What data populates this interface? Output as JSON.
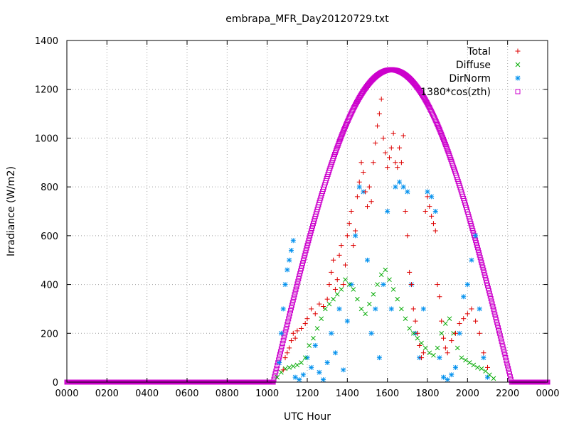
{
  "chart_data": {
    "type": "scatter",
    "title": "embrapa_MFR_Day20120729.txt",
    "xlabel": "UTC Hour",
    "ylabel": "Irradiance (W/m2)",
    "xlim": [
      0,
      24
    ],
    "ylim": [
      0,
      1400
    ],
    "grid": true,
    "legend_position": "top-right",
    "x_ticks": [
      {
        "value": 0,
        "label": "0000"
      },
      {
        "value": 2,
        "label": "0200"
      },
      {
        "value": 4,
        "label": "0400"
      },
      {
        "value": 6,
        "label": "0600"
      },
      {
        "value": 8,
        "label": "0800"
      },
      {
        "value": 10,
        "label": "1000"
      },
      {
        "value": 12,
        "label": "1200"
      },
      {
        "value": 14,
        "label": "1400"
      },
      {
        "value": 16,
        "label": "1600"
      },
      {
        "value": 18,
        "label": "1800"
      },
      {
        "value": 20,
        "label": "2000"
      },
      {
        "value": 22,
        "label": "2200"
      },
      {
        "value": 24,
        "label": "0000"
      }
    ],
    "y_ticks": [
      {
        "value": 0,
        "label": "0"
      },
      {
        "value": 200,
        "label": "200"
      },
      {
        "value": 400,
        "label": "400"
      },
      {
        "value": 600,
        "label": "600"
      },
      {
        "value": 800,
        "label": "800"
      },
      {
        "value": 1000,
        "label": "1000"
      },
      {
        "value": 1200,
        "label": "1200"
      },
      {
        "value": 1400,
        "label": "1400"
      }
    ],
    "series": [
      {
        "name": "Total",
        "marker": "plus",
        "color": "#dd0000",
        "points": [
          [
            10.8,
            50
          ],
          [
            10.9,
            100
          ],
          [
            11.0,
            120
          ],
          [
            11.1,
            140
          ],
          [
            11.2,
            170
          ],
          [
            11.3,
            200
          ],
          [
            11.4,
            180
          ],
          [
            11.5,
            210
          ],
          [
            11.7,
            220
          ],
          [
            11.9,
            240
          ],
          [
            12.0,
            260
          ],
          [
            12.2,
            300
          ],
          [
            12.4,
            280
          ],
          [
            12.6,
            320
          ],
          [
            12.8,
            310
          ],
          [
            13.0,
            340
          ],
          [
            13.1,
            400
          ],
          [
            13.2,
            450
          ],
          [
            13.3,
            500
          ],
          [
            13.4,
            380
          ],
          [
            13.5,
            420
          ],
          [
            13.6,
            520
          ],
          [
            13.7,
            560
          ],
          [
            13.8,
            400
          ],
          [
            13.9,
            480
          ],
          [
            14.0,
            600
          ],
          [
            14.1,
            650
          ],
          [
            14.2,
            700
          ],
          [
            14.3,
            560
          ],
          [
            14.4,
            620
          ],
          [
            14.5,
            760
          ],
          [
            14.6,
            820
          ],
          [
            14.7,
            900
          ],
          [
            14.8,
            860
          ],
          [
            14.9,
            780
          ],
          [
            15.0,
            720
          ],
          [
            15.1,
            800
          ],
          [
            15.2,
            740
          ],
          [
            15.3,
            900
          ],
          [
            15.4,
            980
          ],
          [
            15.5,
            1050
          ],
          [
            15.6,
            1100
          ],
          [
            15.7,
            1160
          ],
          [
            15.8,
            1000
          ],
          [
            15.9,
            940
          ],
          [
            16.0,
            880
          ],
          [
            16.1,
            920
          ],
          [
            16.2,
            960
          ],
          [
            16.3,
            1020
          ],
          [
            16.4,
            900
          ],
          [
            16.5,
            880
          ],
          [
            16.6,
            960
          ],
          [
            16.7,
            900
          ],
          [
            16.8,
            1010
          ],
          [
            16.9,
            700
          ],
          [
            17.0,
            600
          ],
          [
            17.1,
            450
          ],
          [
            17.2,
            400
          ],
          [
            17.3,
            300
          ],
          [
            17.4,
            250
          ],
          [
            17.5,
            200
          ],
          [
            17.6,
            150
          ],
          [
            17.7,
            100
          ],
          [
            17.8,
            120
          ],
          [
            17.9,
            700
          ],
          [
            18.0,
            760
          ],
          [
            18.1,
            720
          ],
          [
            18.2,
            680
          ],
          [
            18.3,
            650
          ],
          [
            18.4,
            620
          ],
          [
            18.5,
            400
          ],
          [
            18.6,
            350
          ],
          [
            18.7,
            250
          ],
          [
            18.8,
            180
          ],
          [
            18.9,
            140
          ],
          [
            19.0,
            120
          ],
          [
            19.2,
            170
          ],
          [
            19.4,
            200
          ],
          [
            19.6,
            240
          ],
          [
            19.8,
            260
          ],
          [
            20.0,
            280
          ],
          [
            20.2,
            300
          ],
          [
            20.4,
            250
          ],
          [
            20.6,
            200
          ],
          [
            20.8,
            120
          ],
          [
            21.0,
            60
          ]
        ]
      },
      {
        "name": "Diffuse",
        "marker": "cross",
        "color": "#00aa00",
        "points": [
          [
            10.5,
            20
          ],
          [
            10.7,
            40
          ],
          [
            10.9,
            55
          ],
          [
            11.1,
            60
          ],
          [
            11.3,
            65
          ],
          [
            11.5,
            70
          ],
          [
            11.7,
            80
          ],
          [
            11.9,
            100
          ],
          [
            12.1,
            150
          ],
          [
            12.3,
            180
          ],
          [
            12.5,
            220
          ],
          [
            12.7,
            260
          ],
          [
            12.9,
            300
          ],
          [
            13.1,
            320
          ],
          [
            13.3,
            340
          ],
          [
            13.5,
            360
          ],
          [
            13.7,
            380
          ],
          [
            13.9,
            420
          ],
          [
            14.1,
            400
          ],
          [
            14.3,
            380
          ],
          [
            14.5,
            340
          ],
          [
            14.7,
            300
          ],
          [
            14.9,
            280
          ],
          [
            15.1,
            320
          ],
          [
            15.3,
            360
          ],
          [
            15.5,
            400
          ],
          [
            15.7,
            440
          ],
          [
            15.9,
            460
          ],
          [
            16.1,
            420
          ],
          [
            16.3,
            380
          ],
          [
            16.5,
            340
          ],
          [
            16.7,
            300
          ],
          [
            16.9,
            260
          ],
          [
            17.1,
            220
          ],
          [
            17.3,
            200
          ],
          [
            17.5,
            180
          ],
          [
            17.7,
            160
          ],
          [
            17.9,
            140
          ],
          [
            18.1,
            120
          ],
          [
            18.3,
            110
          ],
          [
            18.5,
            140
          ],
          [
            18.7,
            200
          ],
          [
            18.9,
            240
          ],
          [
            19.1,
            260
          ],
          [
            19.3,
            200
          ],
          [
            19.5,
            140
          ],
          [
            19.7,
            100
          ],
          [
            19.9,
            90
          ],
          [
            20.1,
            80
          ],
          [
            20.3,
            70
          ],
          [
            20.5,
            60
          ],
          [
            20.7,
            55
          ],
          [
            20.9,
            45
          ],
          [
            21.1,
            30
          ],
          [
            21.3,
            15
          ]
        ]
      },
      {
        "name": "DirNorm",
        "marker": "star",
        "color": "#0090ee",
        "points": [
          [
            10.6,
            80
          ],
          [
            10.7,
            200
          ],
          [
            10.8,
            300
          ],
          [
            10.9,
            400
          ],
          [
            11.0,
            460
          ],
          [
            11.1,
            500
          ],
          [
            11.2,
            540
          ],
          [
            11.3,
            580
          ],
          [
            11.4,
            20
          ],
          [
            11.6,
            10
          ],
          [
            11.8,
            30
          ],
          [
            12.0,
            100
          ],
          [
            12.2,
            60
          ],
          [
            12.4,
            150
          ],
          [
            12.6,
            40
          ],
          [
            12.8,
            10
          ],
          [
            13.0,
            80
          ],
          [
            13.2,
            200
          ],
          [
            13.4,
            120
          ],
          [
            13.6,
            300
          ],
          [
            13.8,
            50
          ],
          [
            14.0,
            250
          ],
          [
            14.2,
            400
          ],
          [
            14.4,
            600
          ],
          [
            14.6,
            800
          ],
          [
            14.8,
            780
          ],
          [
            15.0,
            500
          ],
          [
            15.2,
            200
          ],
          [
            15.4,
            300
          ],
          [
            15.6,
            100
          ],
          [
            15.8,
            400
          ],
          [
            16.0,
            700
          ],
          [
            16.2,
            300
          ],
          [
            16.4,
            800
          ],
          [
            16.6,
            820
          ],
          [
            16.8,
            800
          ],
          [
            17.0,
            780
          ],
          [
            17.2,
            400
          ],
          [
            17.4,
            200
          ],
          [
            17.6,
            100
          ],
          [
            17.8,
            300
          ],
          [
            18.0,
            780
          ],
          [
            18.2,
            760
          ],
          [
            18.4,
            700
          ],
          [
            18.6,
            100
          ],
          [
            18.8,
            20
          ],
          [
            19.0,
            10
          ],
          [
            19.2,
            30
          ],
          [
            19.4,
            60
          ],
          [
            19.6,
            200
          ],
          [
            19.8,
            350
          ],
          [
            20.0,
            400
          ],
          [
            20.2,
            500
          ],
          [
            20.4,
            600
          ],
          [
            20.6,
            300
          ],
          [
            20.8,
            100
          ],
          [
            21.0,
            20
          ]
        ]
      },
      {
        "name": "1380*cos(zth)",
        "marker": "square",
        "color": "#cc00cc",
        "curve": {
          "sunrise_hour": 10.3,
          "sunset_hour": 22.2,
          "peak_hour": 16.2,
          "peak_value": 1280
        }
      }
    ]
  }
}
